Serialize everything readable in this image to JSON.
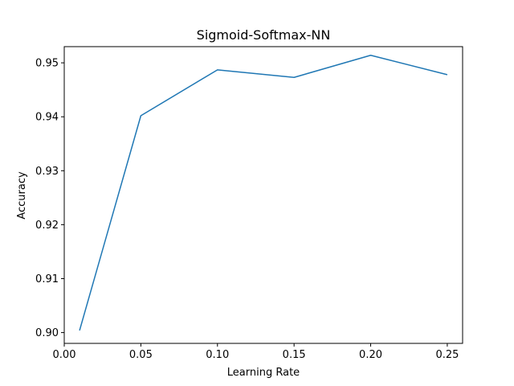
{
  "chart_data": {
    "type": "line",
    "title": "Sigmoid-Softmax-NN",
    "xlabel": "Learning Rate",
    "ylabel": "Accuracy",
    "xlim": [
      0.0,
      0.26
    ],
    "ylim": [
      0.898,
      0.953
    ],
    "xticks": [
      0.0,
      0.05,
      0.1,
      0.15,
      0.2,
      0.25
    ],
    "xtick_labels": [
      "0.00",
      "0.05",
      "0.10",
      "0.15",
      "0.20",
      "0.25"
    ],
    "yticks": [
      0.9,
      0.91,
      0.92,
      0.93,
      0.94,
      0.95
    ],
    "ytick_labels": [
      "0.90",
      "0.91",
      "0.92",
      "0.93",
      "0.94",
      "0.95"
    ],
    "grid": false,
    "series": [
      {
        "color": "#1f77b4",
        "x": [
          0.01,
          0.05,
          0.1,
          0.15,
          0.2,
          0.25
        ],
        "y": [
          0.9004,
          0.9402,
          0.9487,
          0.9473,
          0.9514,
          0.9478
        ]
      }
    ]
  }
}
